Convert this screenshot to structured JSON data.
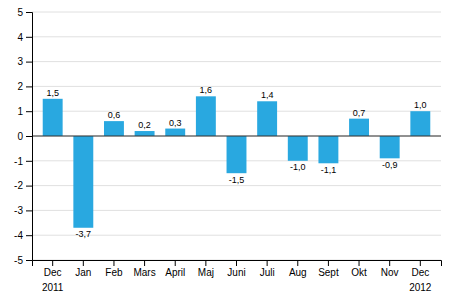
{
  "chart_data": {
    "type": "bar",
    "categories": [
      "Dec",
      "Jan",
      "Feb",
      "Mars",
      "April",
      "Maj",
      "Juni",
      "Juli",
      "Aug",
      "Sept",
      "Okt",
      "Nov",
      "Dec"
    ],
    "values": [
      1.5,
      -3.7,
      0.6,
      0.2,
      0.3,
      1.6,
      -1.5,
      1.4,
      -1.0,
      -1.1,
      0.7,
      -0.9,
      1.0
    ],
    "value_labels": [
      "1,5",
      "-3,7",
      "0,6",
      "0,2",
      "0,3",
      "1,6",
      "-1,5",
      "1,4",
      "-1,0",
      "-1,1",
      "0,7",
      "-0,9",
      "1,0"
    ],
    "data_labels": true,
    "color": "#29A8E0",
    "ylim": [
      -5,
      5
    ],
    "yticks": [
      -5,
      -4,
      -3,
      -2,
      -1,
      0,
      1,
      2,
      3,
      4,
      5
    ],
    "grid": true,
    "annotations": [
      "2011",
      "2012"
    ]
  }
}
